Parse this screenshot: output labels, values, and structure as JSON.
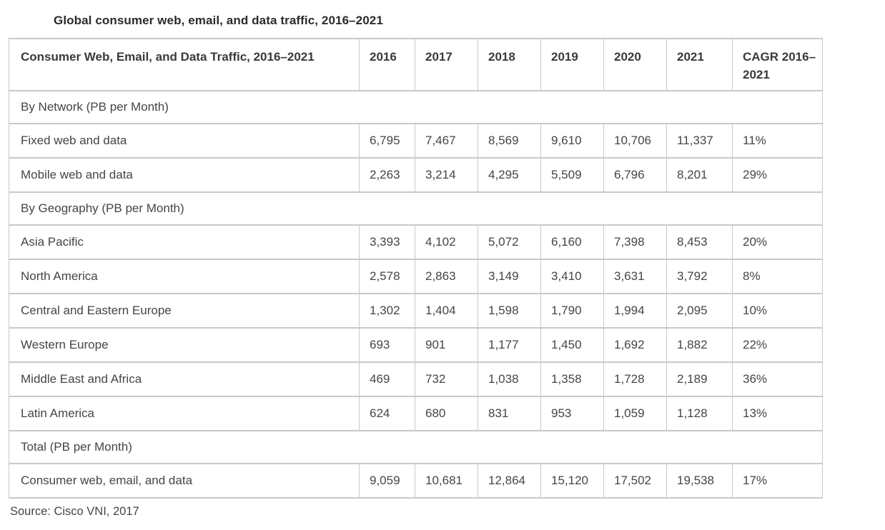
{
  "page": {
    "title": "Global consumer web, email, and data traffic, 2016–2021",
    "source": "Source: Cisco VNI, 2017"
  },
  "chart_data": {
    "type": "table",
    "title": "Global consumer web, email, and data traffic, 2016–2021",
    "unit": "PB per Month",
    "columns": [
      "Consumer Web, Email, and Data Traffic, 2016–2021",
      "2016",
      "2017",
      "2018",
      "2019",
      "2020",
      "2021",
      "CAGR 2016–2021"
    ],
    "sections": [
      {
        "header": "By Network (PB per Month)",
        "rows": [
          {
            "label": "Fixed web and data",
            "values": [
              "6,795",
              "7,467",
              "8,569",
              "9,610",
              "10,706",
              "11,337",
              "11%"
            ]
          },
          {
            "label": "Mobile web and data",
            "values": [
              "2,263",
              "3,214",
              "4,295",
              "5,509",
              "6,796",
              "8,201",
              "29%"
            ]
          }
        ]
      },
      {
        "header": "By Geography (PB per Month)",
        "rows": [
          {
            "label": "Asia Pacific",
            "values": [
              "3,393",
              "4,102",
              "5,072",
              "6,160",
              "7,398",
              "8,453",
              "20%"
            ]
          },
          {
            "label": "North America",
            "values": [
              "2,578",
              "2,863",
              "3,149",
              "3,410",
              "3,631",
              "3,792",
              "8%"
            ]
          },
          {
            "label": "Central and Eastern Europe",
            "values": [
              "1,302",
              "1,404",
              "1,598",
              "1,790",
              "1,994",
              "2,095",
              "10%"
            ]
          },
          {
            "label": "Western Europe",
            "values": [
              "693",
              "901",
              "1,177",
              "1,450",
              "1,692",
              "1,882",
              "22%"
            ]
          },
          {
            "label": "Middle East and Africa",
            "values": [
              "469",
              "732",
              "1,038",
              "1,358",
              "1,728",
              "2,189",
              "36%"
            ]
          },
          {
            "label": "Latin America",
            "values": [
              "624",
              "680",
              "831",
              "953",
              "1,059",
              "1,128",
              "13%"
            ]
          }
        ]
      },
      {
        "header": "Total (PB per Month)",
        "rows": [
          {
            "label": "Consumer web, email, and data",
            "values": [
              "9,059",
              "10,681",
              "12,864",
              "15,120",
              "17,502",
              "19,538",
              "17%"
            ]
          }
        ]
      }
    ]
  },
  "colors": {
    "border": "#c9c9c9",
    "text": "#454545",
    "header_text": "#3a3a3a",
    "title_text": "#2b2b2b",
    "background": "#ffffff"
  }
}
